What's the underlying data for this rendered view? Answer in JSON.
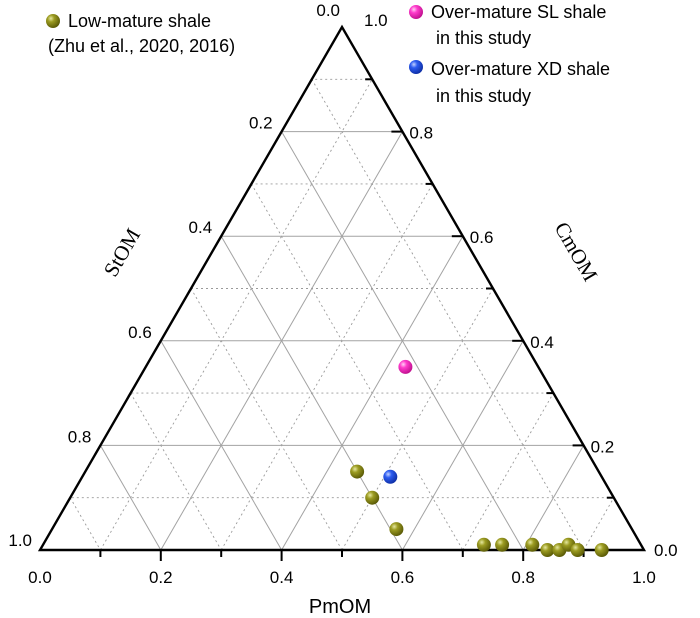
{
  "chart_data": {
    "type": "scatter",
    "subtype": "ternary",
    "axes": {
      "bottom": {
        "label": "PmOM",
        "ticks": [
          "0.0",
          "0.2",
          "0.4",
          "0.6",
          "0.8",
          "1.0"
        ]
      },
      "left": {
        "label": "StOM",
        "ticks": [
          "0.0",
          "0.2",
          "0.4",
          "0.6",
          "0.8",
          "1.0"
        ]
      },
      "right": {
        "label": "CmOM",
        "ticks": [
          "0.0",
          "0.2",
          "0.4",
          "0.6",
          "0.8",
          "1.0"
        ]
      }
    },
    "grid": true,
    "legend_position": "top",
    "series": [
      {
        "name": "Low-mature shale",
        "name_line2": "(Zhu et al., 2020, 2016)",
        "color": "#7f7f0f",
        "points": [
          {
            "PmOM": 0.45,
            "StOM": 0.4,
            "CmOM": 0.15
          },
          {
            "PmOM": 0.5,
            "StOM": 0.4,
            "CmOM": 0.1
          },
          {
            "PmOM": 0.57,
            "StOM": 0.39,
            "CmOM": 0.04
          },
          {
            "PmOM": 0.73,
            "StOM": 0.26,
            "CmOM": 0.01
          },
          {
            "PmOM": 0.76,
            "StOM": 0.23,
            "CmOM": 0.01
          },
          {
            "PmOM": 0.81,
            "StOM": 0.18,
            "CmOM": 0.01
          },
          {
            "PmOM": 0.84,
            "StOM": 0.16,
            "CmOM": 0.0
          },
          {
            "PmOM": 0.86,
            "StOM": 0.14,
            "CmOM": 0.0
          },
          {
            "PmOM": 0.87,
            "StOM": 0.12,
            "CmOM": 0.01
          },
          {
            "PmOM": 0.89,
            "StOM": 0.11,
            "CmOM": 0.0
          },
          {
            "PmOM": 0.93,
            "StOM": 0.07,
            "CmOM": 0.0
          }
        ]
      },
      {
        "name": "Over-mature SL shale",
        "name_line2": "in this study",
        "color": "#ff2fc6",
        "points": [
          {
            "PmOM": 0.43,
            "StOM": 0.22,
            "CmOM": 0.35
          }
        ]
      },
      {
        "name": "Over-mature XD shale",
        "name_line2": "in this study",
        "color": "#2553e6",
        "points": [
          {
            "PmOM": 0.51,
            "StOM": 0.35,
            "CmOM": 0.14
          }
        ]
      }
    ]
  }
}
